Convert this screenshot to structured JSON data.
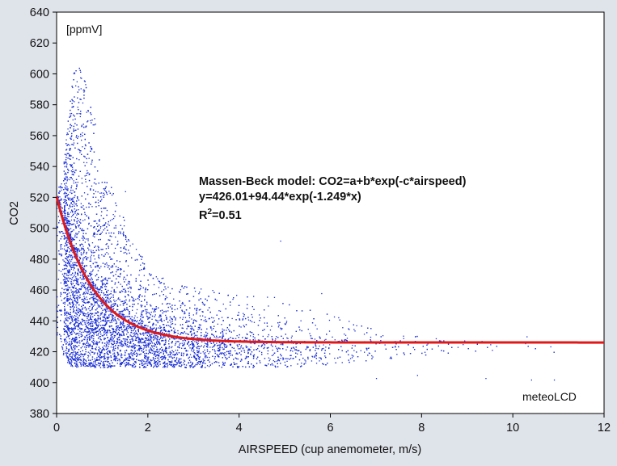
{
  "chart_data": {
    "type": "scatter",
    "title": "",
    "xlabel": "AIRSPEED (cup anemometer, m/s)",
    "ylabel": "CO2",
    "unit_label": "[ppmV]",
    "watermark": "meteoLCD",
    "xlim": [
      0,
      12
    ],
    "ylim": [
      380,
      640
    ],
    "xticks": [
      0,
      2,
      4,
      6,
      8,
      10,
      12
    ],
    "yticks": [
      380,
      400,
      420,
      440,
      460,
      480,
      500,
      520,
      540,
      560,
      580,
      600,
      620,
      640
    ],
    "grid": false,
    "colors": {
      "points": "#1a2fd6",
      "fit": "#e01818",
      "plot_bg": "#ffffff",
      "page_bg": "#dfe3ea"
    },
    "annotation": {
      "line1": "Massen-Beck model: CO2=a+b*exp(-c*airspeed)",
      "line2": "y=426.01+94.44*exp(-1.249*x)",
      "line3_base": "R",
      "line3_sup": "2",
      "line3_rest": "=0.51"
    },
    "fit": {
      "a": 426.01,
      "b": 94.44,
      "c": 1.249
    },
    "series": [
      {
        "kind": "scatter-envelope",
        "x": [
          0.0,
          0.2,
          0.4,
          0.6,
          0.8,
          1.0,
          1.5,
          2.0,
          2.5,
          3.0,
          4.0,
          5.0,
          6.0,
          7.0,
          8.0,
          9.0,
          10.0,
          11.0
        ],
        "low": [
          430,
          412,
          410,
          410,
          410,
          410,
          410,
          410,
          410,
          410,
          410,
          410,
          412,
          415,
          418,
          420,
          420,
          420
        ],
        "high": [
          520,
          560,
          612,
          600,
          575,
          540,
          505,
          475,
          465,
          462,
          458,
          455,
          445,
          435,
          430,
          428,
          428,
          428
        ],
        "outliers": [
          [
            7.0,
            403
          ],
          [
            7.9,
            405
          ],
          [
            9.4,
            403
          ],
          [
            10.4,
            402
          ],
          [
            10.9,
            402
          ],
          [
            4.9,
            492
          ],
          [
            1.5,
            524
          ],
          [
            1.3,
            515
          ],
          [
            6.4,
            440
          ],
          [
            8.9,
            425
          ],
          [
            10.3,
            430
          ],
          [
            5.8,
            458
          ]
        ]
      }
    ]
  }
}
